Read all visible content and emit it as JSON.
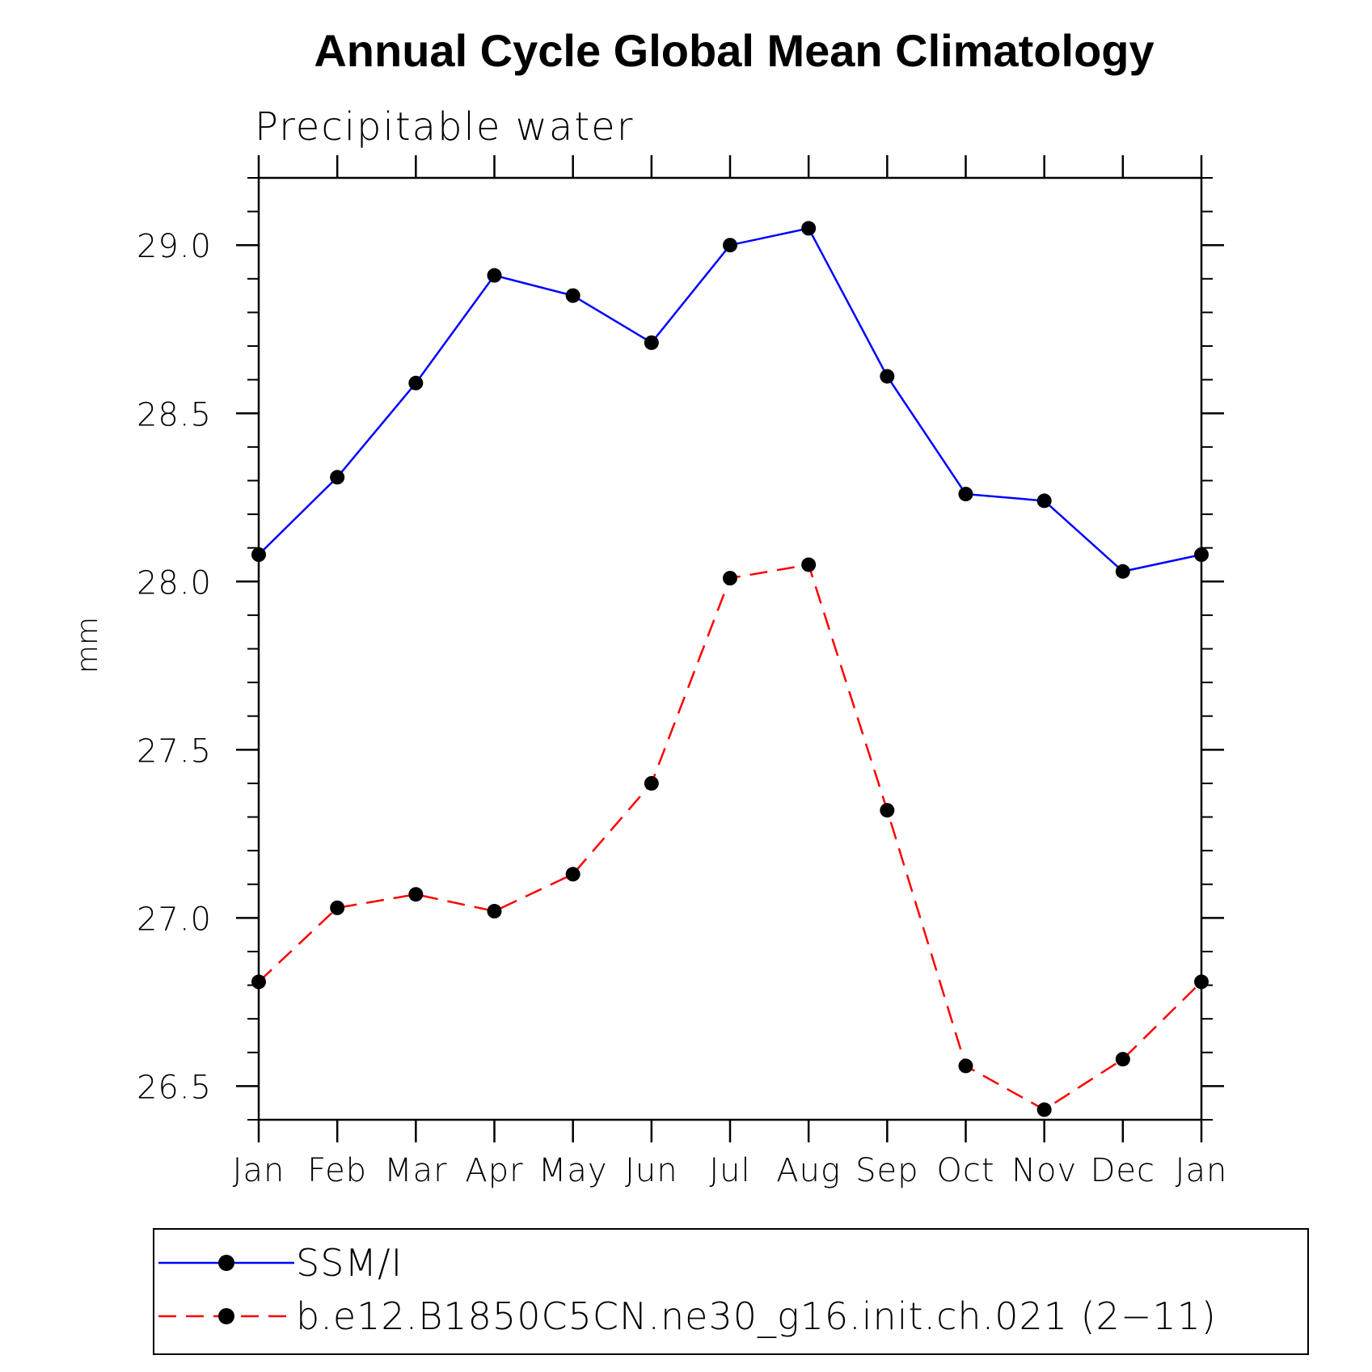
{
  "chart_data": {
    "type": "line",
    "title": "Annual Cycle Global Mean Climatology",
    "subtitle": "Precipitable water",
    "xlabel": "",
    "ylabel": "mm",
    "categories": [
      "Jan",
      "Feb",
      "Mar",
      "Apr",
      "May",
      "Jun",
      "Jul",
      "Aug",
      "Sep",
      "Oct",
      "Nov",
      "Dec",
      "Jan"
    ],
    "ylim": [
      26.4,
      29.2
    ],
    "yticks": [
      "26.5",
      "27.0",
      "27.5",
      "28.0",
      "28.5",
      "29.0"
    ],
    "series": [
      {
        "name": "SSM/I",
        "color": "#0000ff",
        "dash": "solid",
        "values": [
          28.08,
          28.31,
          28.59,
          28.91,
          28.85,
          28.71,
          29.0,
          29.05,
          28.61,
          28.26,
          28.24,
          28.03,
          28.08
        ]
      },
      {
        "name": "b.e12.B1850C5CN.ne30_g16.init.ch.021 (2−11)",
        "color": "#ff0000",
        "dash": "dashed",
        "values": [
          26.81,
          27.03,
          27.07,
          27.02,
          27.13,
          27.4,
          28.01,
          28.05,
          27.32,
          26.56,
          26.43,
          26.58,
          26.81
        ]
      }
    ],
    "legend": "bottom"
  }
}
